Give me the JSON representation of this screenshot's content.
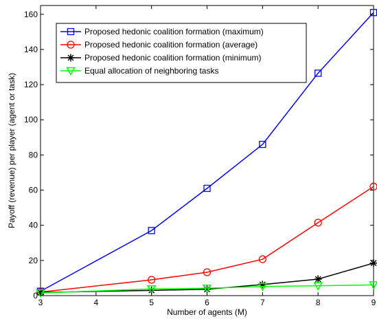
{
  "chart_data": {
    "type": "line",
    "title": "",
    "xlabel": "Number of agents (M)",
    "ylabel": "Payoff (revenue) per player (agent or task)",
    "xlim": [
      3,
      9
    ],
    "ylim": [
      0,
      165
    ],
    "xticks": [
      3,
      4,
      5,
      6,
      7,
      8,
      9
    ],
    "yticks": [
      0,
      20,
      40,
      60,
      80,
      100,
      120,
      140,
      160
    ],
    "grid": false,
    "legend_position": "top-left",
    "x": [
      3,
      5,
      6,
      7,
      8,
      9
    ],
    "series": [
      {
        "name": "Proposed hedonic coalition formation (maximum)",
        "color": "#0000ff",
        "marker": "square",
        "values": [
          2.5,
          37,
          61,
          86,
          126.5,
          161
        ]
      },
      {
        "name": "Proposed hedonic coalition formation (average)",
        "color": "#ff0000",
        "marker": "circle",
        "values": [
          2,
          9,
          13.3,
          20.7,
          41.5,
          62
        ]
      },
      {
        "name": "Proposed hedonic coalition formation (minimum)",
        "color": "#000000",
        "marker": "star",
        "values": [
          1.8,
          3,
          3.6,
          6.3,
          9.4,
          18.5
        ]
      },
      {
        "name": "Equal allocation of neighboring tasks",
        "color": "#00ff00",
        "marker": "triangle-down",
        "values": [
          1.5,
          3.8,
          4.2,
          5.2,
          5.6,
          6.1
        ]
      }
    ]
  }
}
